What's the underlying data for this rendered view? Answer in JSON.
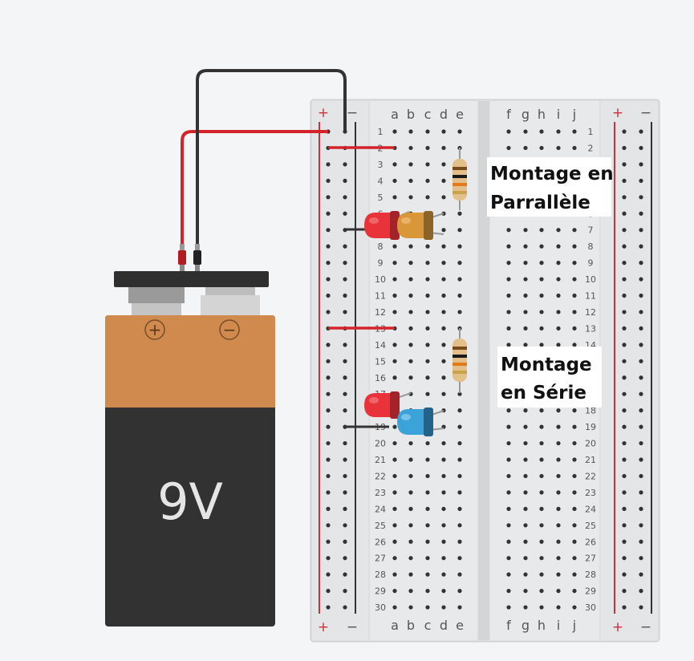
{
  "battery": {
    "label": "9V",
    "plus_symbol": "+",
    "minus_symbol": "−"
  },
  "breadboard": {
    "rail_plus": "+",
    "rail_minus": "−",
    "columns_left": [
      "a",
      "b",
      "c",
      "d",
      "e"
    ],
    "columns_right": [
      "f",
      "g",
      "h",
      "i",
      "j"
    ],
    "rows": 30
  },
  "annotations": {
    "parallel_line1": "Montage en",
    "parallel_line2": "Parrallèle",
    "series_line1": "Montage",
    "series_line2": "en Série"
  },
  "colors": {
    "wire_red": "#d4232b",
    "wire_black": "#333333",
    "battery_top": "#d08a4e",
    "battery_body": "#323232",
    "led_red": "#e8333a",
    "led_amber": "#d9973a",
    "led_blue": "#3ba3d9"
  }
}
